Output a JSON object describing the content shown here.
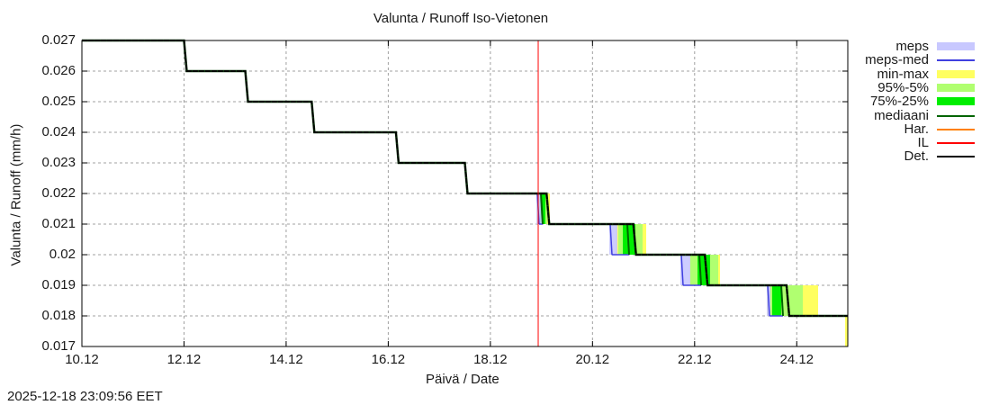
{
  "chart_data": {
    "type": "line",
    "title": "Valunta / Runoff  Iso-Vietonen",
    "xlabel": "Päivä / Date",
    "ylabel": "Valunta / Runoff (mm/h)",
    "ylim": [
      0.017,
      0.027
    ],
    "xlim": [
      "10.12",
      "25.12"
    ],
    "yticks": [
      "0.027",
      "0.026",
      "0.025",
      "0.024",
      "0.023",
      "0.022",
      "0.021",
      "0.02",
      "0.019",
      "0.018",
      "0.017"
    ],
    "xticks": [
      "10.12",
      "12.12",
      "14.12",
      "16.12",
      "18.12",
      "20.12",
      "22.12",
      "24.12"
    ],
    "grid": true,
    "legend_position": "right",
    "forecast_start_marker": {
      "label": "IL",
      "date": "19.12",
      "color": "#ff0000"
    },
    "series": [
      {
        "name": "Det.",
        "color": "#000000",
        "style": "step",
        "points": [
          [
            "10.12",
            0.027
          ],
          [
            "12.00",
            0.027
          ],
          [
            "12.00",
            0.026
          ],
          [
            "13.20",
            0.026
          ],
          [
            "13.20",
            0.025
          ],
          [
            "14.50",
            0.025
          ],
          [
            "14.50",
            0.024
          ],
          [
            "16.15",
            0.024
          ],
          [
            "16.15",
            0.023
          ],
          [
            "17.50",
            0.023
          ],
          [
            "17.50",
            0.022
          ],
          [
            "19.10",
            0.022
          ],
          [
            "19.10",
            0.021
          ],
          [
            "20.80",
            0.021
          ],
          [
            "20.80",
            0.02
          ],
          [
            "22.20",
            0.02
          ],
          [
            "22.20",
            0.019
          ],
          [
            "23.80",
            0.019
          ],
          [
            "23.80",
            0.018
          ],
          [
            "25.12",
            0.018
          ]
        ]
      },
      {
        "name": "meps",
        "color": "#c8c8ff",
        "style": "band"
      },
      {
        "name": "meps-med",
        "color": "#4040e0",
        "style": "line"
      },
      {
        "name": "min-max",
        "color": "#ffff60",
        "style": "band"
      },
      {
        "name": "95%-5%",
        "color": "#b0ff70",
        "style": "band"
      },
      {
        "name": "75%-25%",
        "color": "#00ee00",
        "style": "band"
      },
      {
        "name": "mediaani",
        "color": "#006400",
        "style": "line"
      },
      {
        "name": "Har.",
        "color": "#ff8000",
        "style": "line"
      },
      {
        "name": "IL",
        "color": "#ff0000",
        "style": "line"
      }
    ]
  },
  "title": "Valunta / Runoff  Iso-Vietonen",
  "xlabel": "Päivä / Date",
  "ylabel": "Valunta / Runoff (mm/h)",
  "timestamp": "2025-12-18 23:09:56 EET",
  "legend": [
    {
      "label": "meps",
      "color": "#c8c8ff",
      "kind": "band"
    },
    {
      "label": "meps-med",
      "color": "#4040e0",
      "kind": "line"
    },
    {
      "label": "min-max",
      "color": "#ffff60",
      "kind": "band"
    },
    {
      "label": "95%-5%",
      "color": "#b0ff70",
      "kind": "band"
    },
    {
      "label": "75%-25%",
      "color": "#00ee00",
      "kind": "band"
    },
    {
      "label": "mediaani",
      "color": "#006400",
      "kind": "line"
    },
    {
      "label": "Har.",
      "color": "#ff8000",
      "kind": "line"
    },
    {
      "label": "IL",
      "color": "#ff0000",
      "kind": "line"
    },
    {
      "label": "Det.",
      "color": "#000000",
      "kind": "line"
    }
  ]
}
